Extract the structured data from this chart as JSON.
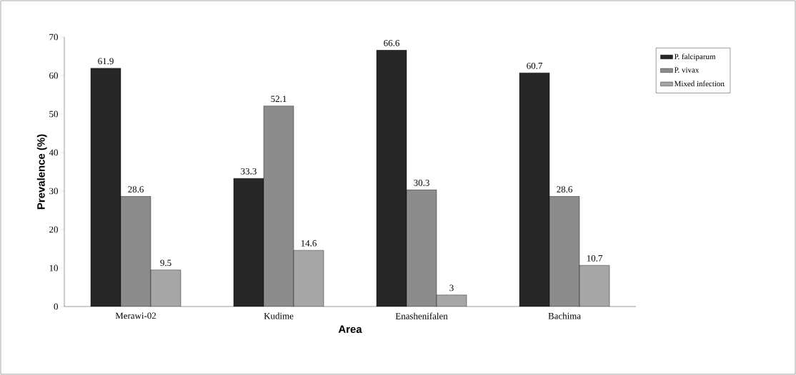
{
  "chart_data": {
    "type": "bar",
    "xlabel": "Area",
    "ylabel": "Prevalence (%)",
    "categories": [
      "Merawi-02",
      "Kudime",
      "Enashenifalen",
      "Bachima"
    ],
    "series": [
      {
        "name": "P. falciparum",
        "color": "#262626",
        "values": [
          61.9,
          33.3,
          66.6,
          60.7
        ]
      },
      {
        "name": "P. vivax",
        "color": "#8c8c8c",
        "values": [
          28.6,
          52.1,
          30.3,
          28.6
        ]
      },
      {
        "name": "Mixed infection",
        "color": "#a6a6a6",
        "values": [
          9.5,
          14.6,
          3,
          10.7
        ]
      }
    ],
    "ylim": [
      0,
      70
    ],
    "yticks": [
      0,
      10,
      20,
      30,
      40,
      50,
      60,
      70
    ],
    "data_labels": true,
    "legend": "right",
    "grid": false
  }
}
